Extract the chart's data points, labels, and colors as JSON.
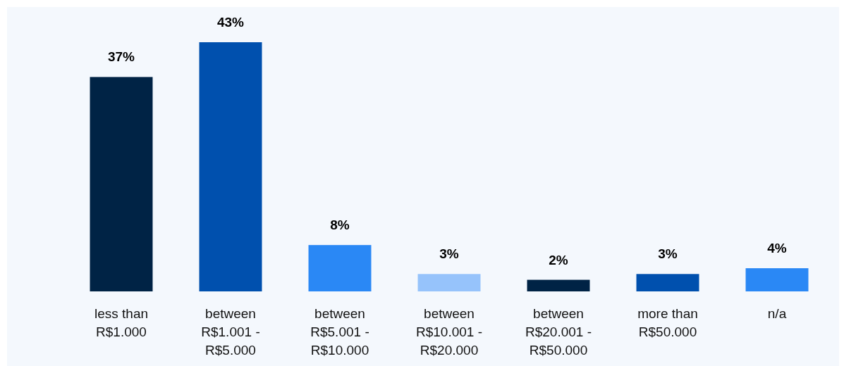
{
  "chart_data": {
    "type": "bar",
    "categories": [
      "less than R$1.000",
      "between R$1.001 - R$5.000",
      "between R$5.001 - R$10.000",
      "between R$10.001 - R$20.000",
      "between R$20.001 - R$50.000",
      "more than R$50.000",
      "n/a"
    ],
    "values": [
      37,
      43,
      8,
      3,
      2,
      3,
      4
    ],
    "colors": [
      "#002345",
      "#0050ae",
      "#2a88f5",
      "#96c3fb",
      "#002345",
      "#0050ae",
      "#2a88f5"
    ],
    "value_labels": [
      "37%",
      "43%",
      "8%",
      "3%",
      "2%",
      "3%",
      "4%"
    ]
  }
}
